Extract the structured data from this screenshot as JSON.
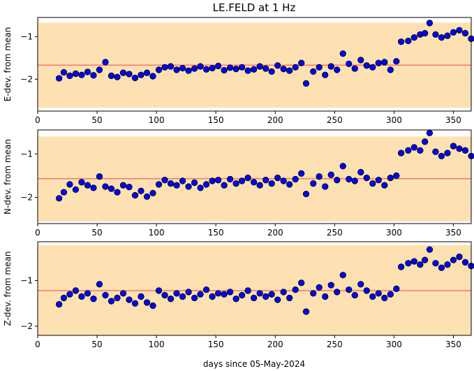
{
  "figure": {
    "title": "LE.FELD at 1 Hz",
    "shared_xlabel": "days since 05-May-2024"
  },
  "chart_data": [
    {
      "type": "scatter",
      "ylabel": "E-dev. from mean",
      "xlim": [
        0,
        365
      ],
      "ylim": [
        -2.75,
        -0.55
      ],
      "xticks": [
        0,
        50,
        100,
        150,
        200,
        250,
        300,
        350
      ],
      "yticks": [
        -2,
        -1
      ],
      "band": [
        -2.67,
        -0.67
      ],
      "refline": -1.67,
      "series": [
        {
          "x": [
            18,
            22,
            27,
            32,
            37,
            42,
            47,
            52,
            57,
            62,
            67,
            72,
            77,
            82,
            87,
            92,
            97,
            102,
            107,
            112,
            117,
            122,
            127,
            132,
            137,
            142,
            147,
            152,
            157,
            162,
            167,
            172,
            177,
            182,
            187,
            192,
            197,
            202,
            207,
            212,
            217,
            222,
            226,
            232,
            237,
            242,
            247,
            252,
            257,
            262,
            267,
            272,
            277,
            282,
            287,
            292,
            297,
            302,
            306,
            312,
            317,
            322,
            326,
            330,
            335,
            340,
            345,
            350,
            355,
            360,
            365
          ],
          "y": [
            -1.98,
            -1.84,
            -1.92,
            -1.87,
            -1.9,
            -1.83,
            -1.91,
            -1.78,
            -1.6,
            -1.92,
            -1.95,
            -1.85,
            -1.88,
            -1.97,
            -1.9,
            -1.85,
            -1.93,
            -1.78,
            -1.72,
            -1.7,
            -1.78,
            -1.74,
            -1.8,
            -1.75,
            -1.7,
            -1.77,
            -1.74,
            -1.69,
            -1.79,
            -1.73,
            -1.76,
            -1.72,
            -1.8,
            -1.77,
            -1.7,
            -1.75,
            -1.82,
            -1.68,
            -1.76,
            -1.8,
            -1.72,
            -1.62,
            -2.1,
            -1.82,
            -1.72,
            -1.9,
            -1.7,
            -1.78,
            -1.4,
            -1.64,
            -1.75,
            -1.55,
            -1.68,
            -1.72,
            -1.62,
            -1.6,
            -1.78,
            -1.58,
            -1.12,
            -1.1,
            -1.02,
            -0.95,
            -0.92,
            -0.68,
            -0.95,
            -1.02,
            -0.98,
            -0.9,
            -0.85,
            -0.92,
            -1.05
          ]
        }
      ]
    },
    {
      "type": "scatter",
      "ylabel": "N-dev. from mean",
      "xlim": [
        0,
        365
      ],
      "ylim": [
        -2.6,
        -0.45
      ],
      "xticks": [
        0,
        50,
        100,
        150,
        200,
        250,
        300,
        350
      ],
      "yticks": [
        -2,
        -1
      ],
      "band": [
        -2.55,
        -0.6
      ],
      "refline": -1.57,
      "series": [
        {
          "x": [
            18,
            22,
            27,
            32,
            37,
            42,
            47,
            52,
            57,
            62,
            67,
            72,
            77,
            82,
            87,
            92,
            97,
            102,
            107,
            112,
            117,
            122,
            127,
            132,
            137,
            142,
            147,
            152,
            157,
            162,
            167,
            172,
            177,
            182,
            187,
            192,
            197,
            202,
            207,
            212,
            217,
            222,
            226,
            232,
            237,
            242,
            247,
            252,
            257,
            262,
            267,
            272,
            277,
            282,
            287,
            292,
            297,
            302,
            306,
            312,
            317,
            322,
            326,
            330,
            335,
            340,
            345,
            350,
            355,
            360,
            365
          ],
          "y": [
            -2.02,
            -1.88,
            -1.7,
            -1.82,
            -1.65,
            -1.72,
            -1.78,
            -1.52,
            -1.75,
            -1.8,
            -1.88,
            -1.72,
            -1.76,
            -1.95,
            -1.85,
            -1.98,
            -1.9,
            -1.7,
            -1.6,
            -1.68,
            -1.72,
            -1.62,
            -1.75,
            -1.66,
            -1.78,
            -1.7,
            -1.62,
            -1.6,
            -1.72,
            -1.58,
            -1.68,
            -1.62,
            -1.55,
            -1.65,
            -1.72,
            -1.6,
            -1.68,
            -1.55,
            -1.62,
            -1.7,
            -1.58,
            -1.45,
            -1.92,
            -1.68,
            -1.52,
            -1.75,
            -1.48,
            -1.6,
            -1.28,
            -1.58,
            -1.62,
            -1.42,
            -1.55,
            -1.68,
            -1.6,
            -1.72,
            -1.55,
            -1.5,
            -0.98,
            -0.92,
            -0.85,
            -0.92,
            -0.72,
            -0.52,
            -0.95,
            -1.05,
            -0.98,
            -0.82,
            -0.88,
            -0.92,
            -1.05
          ]
        }
      ]
    },
    {
      "type": "scatter",
      "ylabel": "Z-dev. from mean",
      "xlim": [
        0,
        365
      ],
      "ylim": [
        -2.2,
        -0.15
      ],
      "xticks": [
        0,
        50,
        100,
        150,
        200,
        250,
        300,
        350
      ],
      "yticks": [
        -2,
        -1
      ],
      "band": [
        -2.2,
        -0.22
      ],
      "refline": -1.22,
      "series": [
        {
          "x": [
            18,
            22,
            27,
            32,
            37,
            42,
            47,
            52,
            57,
            62,
            67,
            72,
            77,
            82,
            87,
            92,
            97,
            102,
            107,
            112,
            117,
            122,
            127,
            132,
            137,
            142,
            147,
            152,
            157,
            162,
            167,
            172,
            177,
            182,
            187,
            192,
            197,
            202,
            207,
            212,
            217,
            222,
            226,
            232,
            237,
            242,
            247,
            252,
            257,
            262,
            267,
            272,
            277,
            282,
            287,
            292,
            297,
            302,
            306,
            312,
            317,
            322,
            326,
            330,
            335,
            340,
            345,
            350,
            355,
            360,
            365
          ],
          "y": [
            -1.52,
            -1.38,
            -1.3,
            -1.22,
            -1.35,
            -1.28,
            -1.4,
            -1.08,
            -1.32,
            -1.45,
            -1.38,
            -1.28,
            -1.42,
            -1.5,
            -1.35,
            -1.48,
            -1.55,
            -1.22,
            -1.32,
            -1.4,
            -1.28,
            -1.35,
            -1.25,
            -1.38,
            -1.3,
            -1.2,
            -1.35,
            -1.28,
            -1.3,
            -1.25,
            -1.4,
            -1.32,
            -1.22,
            -1.38,
            -1.28,
            -1.35,
            -1.3,
            -1.42,
            -1.25,
            -1.38,
            -1.2,
            -1.05,
            -1.68,
            -1.28,
            -1.15,
            -1.35,
            -1.1,
            -1.25,
            -0.88,
            -1.2,
            -1.32,
            -1.08,
            -1.22,
            -1.35,
            -1.28,
            -1.38,
            -1.3,
            -1.18,
            -0.7,
            -0.62,
            -0.58,
            -0.65,
            -0.55,
            -0.32,
            -0.62,
            -0.72,
            -0.65,
            -0.55,
            -0.48,
            -0.6,
            -0.68
          ]
        }
      ]
    }
  ],
  "colors": {
    "band": "#fee1b2",
    "refline": "#f4776b",
    "point_fill": "#0000ff",
    "point_stroke": "#000000"
  }
}
